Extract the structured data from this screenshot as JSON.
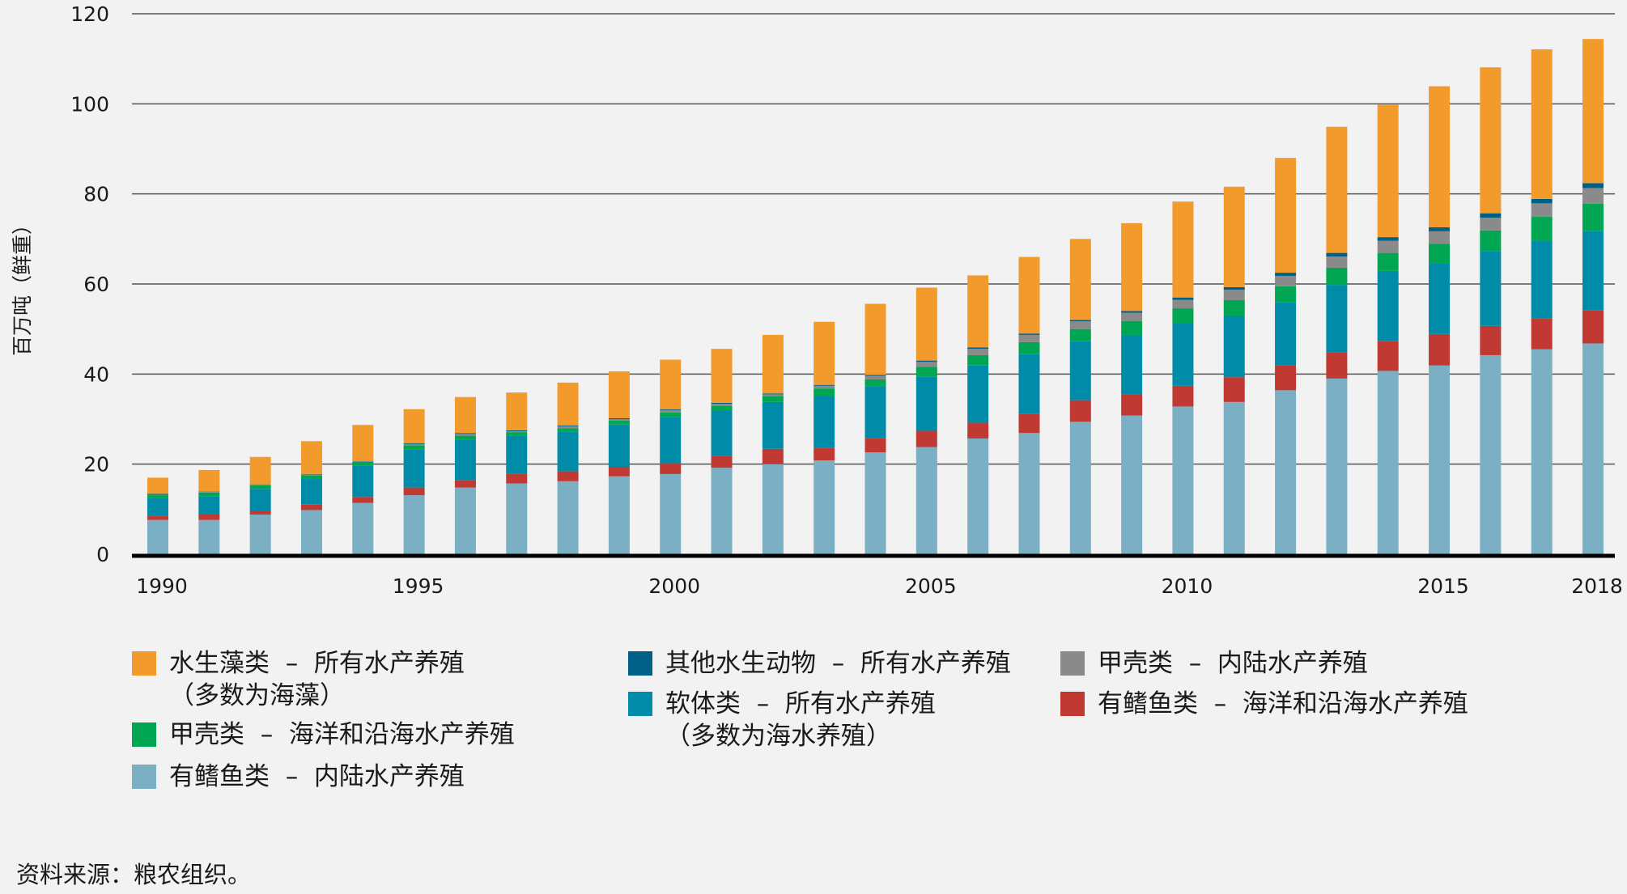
{
  "chart_data": {
    "type": "bar",
    "stacked": true,
    "title": "",
    "xlabel": "",
    "ylabel": "百万吨（鲜重）",
    "ylim": [
      0,
      120
    ],
    "yticks": [
      0,
      20,
      40,
      60,
      80,
      100,
      120
    ],
    "xtick_labels": [
      "1990",
      "1995",
      "2000",
      "2005",
      "2010",
      "2015",
      "2018"
    ],
    "grid": true,
    "legend_position": "bottom",
    "categories": [
      "1990",
      "1991",
      "1992",
      "1993",
      "1994",
      "1995",
      "1996",
      "1997",
      "1998",
      "1999",
      "2000",
      "2001",
      "2002",
      "2003",
      "2004",
      "2005",
      "2006",
      "2007",
      "2008",
      "2009",
      "2010",
      "2011",
      "2012",
      "2013",
      "2014",
      "2015",
      "2016",
      "2017",
      "2018"
    ],
    "series": [
      {
        "name": "有鳍鱼类 – 内陆水产养殖",
        "color": "#7aafc4",
        "values": [
          7.6,
          7.6,
          8.8,
          9.8,
          11.4,
          13.1,
          14.8,
          15.7,
          16.2,
          17.3,
          17.8,
          19.2,
          20.0,
          20.8,
          22.6,
          23.8,
          25.7,
          26.9,
          29.4,
          30.8,
          32.8,
          33.8,
          36.4,
          39.0,
          40.7,
          41.9,
          44.2,
          45.5,
          46.8
        ]
      },
      {
        "name": "有鳍鱼类 – 海洋和沿海水产养殖",
        "color": "#c03a33",
        "values": [
          1.0,
          1.3,
          0.9,
          1.2,
          1.3,
          1.7,
          1.7,
          2.1,
          2.2,
          2.1,
          2.4,
          2.6,
          3.4,
          2.8,
          3.2,
          3.6,
          3.5,
          4.3,
          4.8,
          4.6,
          4.6,
          5.5,
          5.6,
          5.8,
          6.6,
          7.0,
          6.5,
          6.8,
          7.4
        ]
      },
      {
        "name": "软体类 – 所有水产养殖（多数为海水养殖）",
        "color": "#008ca8",
        "values": [
          3.9,
          4.0,
          4.8,
          5.7,
          7.0,
          8.5,
          8.9,
          8.5,
          8.8,
          9.4,
          10.3,
          10.0,
          10.4,
          11.6,
          11.4,
          12.0,
          12.7,
          13.3,
          13.1,
          13.2,
          13.8,
          13.6,
          13.9,
          15.0,
          15.6,
          15.6,
          16.6,
          17.3,
          17.6
        ]
      },
      {
        "name": "甲壳类 – 海洋和沿海水产养殖",
        "color": "#00a651",
        "values": [
          0.6,
          0.8,
          0.8,
          0.8,
          0.8,
          0.9,
          0.9,
          0.8,
          0.8,
          0.9,
          1.0,
          1.2,
          1.3,
          1.6,
          1.6,
          2.2,
          2.3,
          2.6,
          2.7,
          3.2,
          3.4,
          3.5,
          3.6,
          3.8,
          4.0,
          4.4,
          4.6,
          5.3,
          6.0
        ]
      },
      {
        "name": "甲壳类 – 内陆水产养殖",
        "color": "#8a8a8a",
        "values": [
          0.1,
          0.1,
          0.1,
          0.1,
          0.1,
          0.2,
          0.4,
          0.2,
          0.4,
          0.3,
          0.5,
          0.4,
          0.4,
          0.6,
          0.8,
          1.1,
          1.4,
          1.6,
          1.7,
          1.8,
          1.9,
          2.3,
          2.3,
          2.5,
          2.7,
          2.8,
          2.8,
          3.0,
          3.5
        ]
      },
      {
        "name": "其他水生动物 – 所有水产养殖",
        "color": "#005f87",
        "values": [
          0.2,
          0.1,
          0.1,
          0.1,
          0.1,
          0.2,
          0.2,
          0.2,
          0.2,
          0.2,
          0.2,
          0.2,
          0.2,
          0.2,
          0.2,
          0.3,
          0.3,
          0.3,
          0.3,
          0.4,
          0.5,
          0.6,
          0.7,
          0.8,
          0.8,
          0.9,
          1.0,
          1.0,
          1.1
        ]
      },
      {
        "name": "水生藻类 – 所有水产养殖（多数为海藻）",
        "color": "#f39a2d",
        "values": [
          3.6,
          4.8,
          6.1,
          7.4,
          8.0,
          7.6,
          8.0,
          8.4,
          9.5,
          10.4,
          11.0,
          12.0,
          13.0,
          14.0,
          15.8,
          16.2,
          16.0,
          17.0,
          18.0,
          19.5,
          21.3,
          22.3,
          25.5,
          28.0,
          29.4,
          31.3,
          32.4,
          33.2,
          32.0
        ]
      }
    ]
  },
  "legend": [
    {
      "label": "水生藻类  –  所有水产养殖\n（多数为海藻）",
      "color": "#f39a2d"
    },
    {
      "label": "其他水生动物  –  所有水产养殖",
      "color": "#005f87"
    },
    {
      "label": "甲壳类  –  内陆水产养殖",
      "color": "#8a8a8a"
    },
    {
      "label": "软体类  –  所有水产养殖\n（多数为海水养殖）",
      "color": "#008ca8"
    },
    {
      "label": "有鳍鱼类  –  海洋和沿海水产养殖",
      "color": "#c03a33"
    },
    {
      "label": "甲壳类  –  海洋和沿海水产养殖",
      "color": "#00a651"
    },
    {
      "label": "有鳍鱼类  –  内陆水产养殖",
      "color": "#7aafc4"
    }
  ],
  "source": "资料来源：粮农组织。"
}
